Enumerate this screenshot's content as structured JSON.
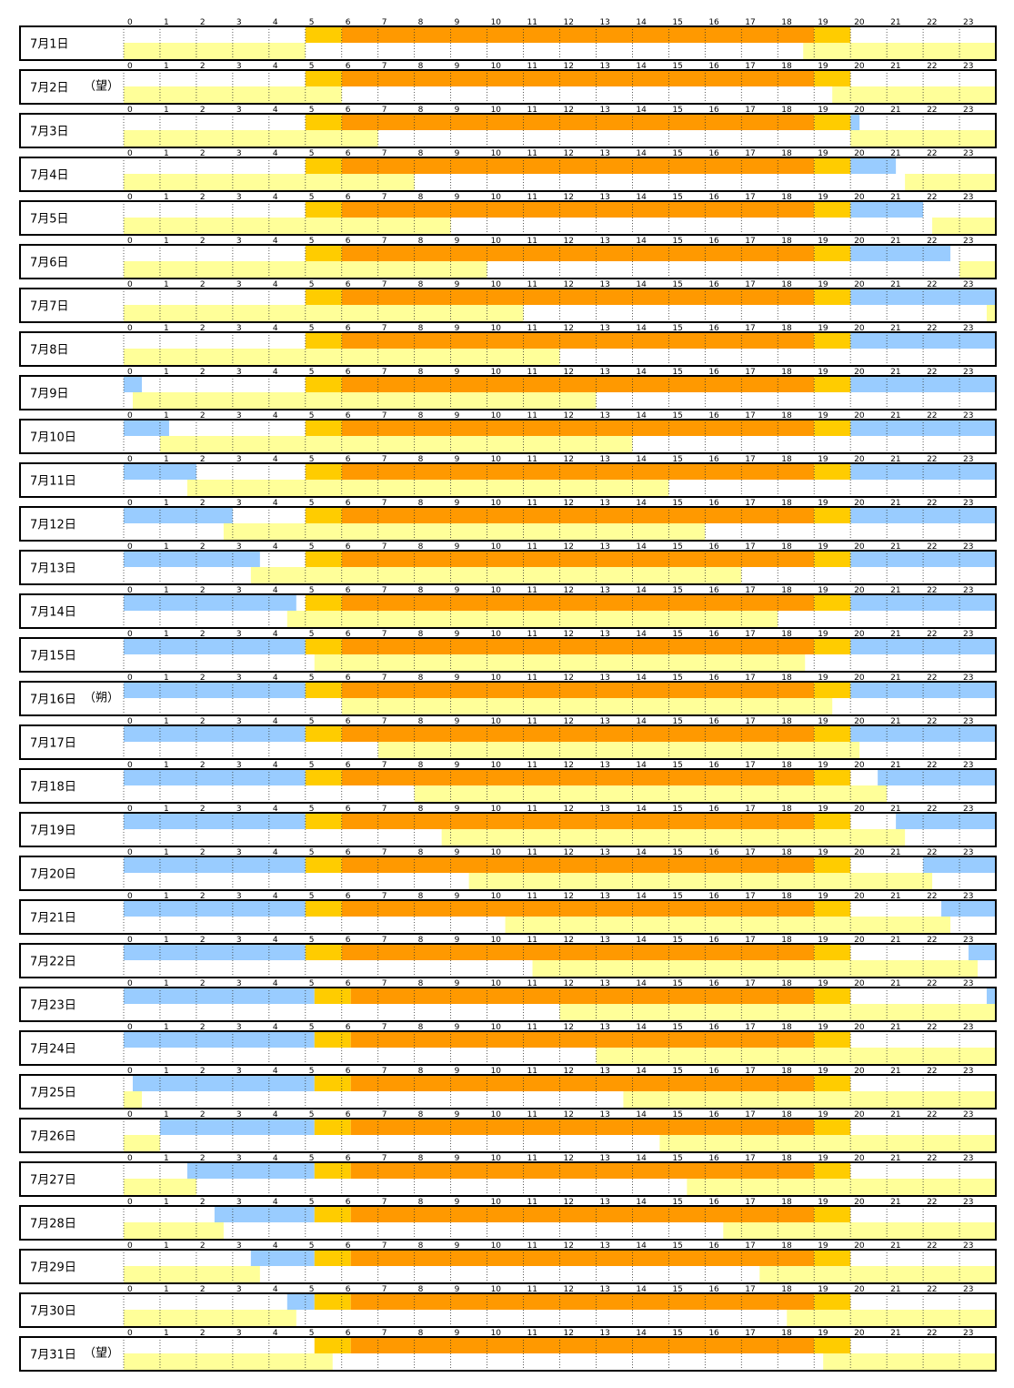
{
  "chart_data": {
    "type": "bar",
    "hours": [
      "0",
      "1",
      "2",
      "3",
      "4",
      "5",
      "6",
      "7",
      "8",
      "9",
      "10",
      "11",
      "12",
      "13",
      "14",
      "15",
      "16",
      "17",
      "18",
      "19",
      "20",
      "21",
      "22",
      "23"
    ],
    "x_range": [
      0,
      24
    ],
    "grid": true,
    "colors": {
      "sun": "#FF9900",
      "twilight": "#FFCC00",
      "moon": "#FFFF99",
      "moon_prev": "#99CCFF"
    },
    "series": [
      {
        "key": "sun"
      },
      {
        "key": "twilight"
      },
      {
        "key": "moon"
      },
      {
        "key": "moon_prev"
      }
    ],
    "days": [
      {
        "label": "7月1日",
        "note": "",
        "twilight_am": [
          5.0,
          6.0
        ],
        "sun": [
          6.0,
          19.0
        ],
        "twilight_pm": [
          19.0,
          20.0
        ],
        "moon_prev": [],
        "moon": [
          [
            0,
            5.0
          ],
          [
            18.7,
            24
          ]
        ]
      },
      {
        "label": "7月2日",
        "note": "（望）",
        "twilight_am": [
          5.0,
          6.0
        ],
        "sun": [
          6.0,
          19.0
        ],
        "twilight_pm": [
          19.0,
          20.0
        ],
        "moon_prev": [],
        "moon": [
          [
            0,
            6.0
          ],
          [
            19.5,
            24
          ]
        ]
      },
      {
        "label": "7月3日",
        "note": "",
        "twilight_am": [
          5.0,
          6.0
        ],
        "sun": [
          6.0,
          19.0
        ],
        "twilight_pm": [
          19.0,
          20.0
        ],
        "moon_prev": [
          [
            20.0,
            20.25
          ]
        ],
        "moon": [
          [
            0,
            7.0
          ],
          [
            20.0,
            24
          ]
        ]
      },
      {
        "label": "7月4日",
        "note": "",
        "twilight_am": [
          5.0,
          6.0
        ],
        "sun": [
          6.0,
          19.0
        ],
        "twilight_pm": [
          19.0,
          20.0
        ],
        "moon_prev": [
          [
            20.0,
            21.25
          ]
        ],
        "moon": [
          [
            0,
            8.0
          ],
          [
            21.5,
            24
          ]
        ]
      },
      {
        "label": "7月5日",
        "note": "",
        "twilight_am": [
          5.0,
          6.0
        ],
        "sun": [
          6.0,
          19.0
        ],
        "twilight_pm": [
          19.0,
          20.0
        ],
        "moon_prev": [
          [
            20.0,
            22.0
          ]
        ],
        "moon": [
          [
            0,
            9.0
          ],
          [
            22.25,
            24
          ]
        ]
      },
      {
        "label": "7月6日",
        "note": "",
        "twilight_am": [
          5.0,
          6.0
        ],
        "sun": [
          6.0,
          19.0
        ],
        "twilight_pm": [
          19.0,
          20.0
        ],
        "moon_prev": [
          [
            20.0,
            22.75
          ]
        ],
        "moon": [
          [
            0,
            10.0
          ],
          [
            23.0,
            24
          ]
        ]
      },
      {
        "label": "7月7日",
        "note": "",
        "twilight_am": [
          5.0,
          6.0
        ],
        "sun": [
          6.0,
          19.0
        ],
        "twilight_pm": [
          19.0,
          20.0
        ],
        "moon_prev": [
          [
            20.0,
            24
          ]
        ],
        "moon": [
          [
            0,
            11.0
          ],
          [
            23.75,
            24
          ]
        ]
      },
      {
        "label": "7月8日",
        "note": "",
        "twilight_am": [
          5.0,
          6.0
        ],
        "sun": [
          6.0,
          19.0
        ],
        "twilight_pm": [
          19.0,
          20.0
        ],
        "moon_prev": [
          [
            20.0,
            24
          ]
        ],
        "moon": [
          [
            0,
            12.0
          ]
        ]
      },
      {
        "label": "7月9日",
        "note": "",
        "twilight_am": [
          5.0,
          6.0
        ],
        "sun": [
          6.0,
          19.0
        ],
        "twilight_pm": [
          19.0,
          20.0
        ],
        "moon_prev": [
          [
            0,
            0.5
          ],
          [
            20.0,
            24
          ]
        ],
        "moon": [
          [
            0.25,
            13.0
          ]
        ]
      },
      {
        "label": "7月10日",
        "note": "",
        "twilight_am": [
          5.0,
          6.0
        ],
        "sun": [
          6.0,
          19.0
        ],
        "twilight_pm": [
          19.0,
          20.0
        ],
        "moon_prev": [
          [
            0,
            1.25
          ],
          [
            20.0,
            24
          ]
        ],
        "moon": [
          [
            1.0,
            14.0
          ]
        ]
      },
      {
        "label": "7月11日",
        "note": "",
        "twilight_am": [
          5.0,
          6.0
        ],
        "sun": [
          6.0,
          19.0
        ],
        "twilight_pm": [
          19.0,
          20.0
        ],
        "moon_prev": [
          [
            0,
            2.0
          ],
          [
            20.0,
            24
          ]
        ],
        "moon": [
          [
            1.75,
            15.0
          ]
        ]
      },
      {
        "label": "7月12日",
        "note": "",
        "twilight_am": [
          5.0,
          6.0
        ],
        "sun": [
          6.0,
          19.0
        ],
        "twilight_pm": [
          19.0,
          20.0
        ],
        "moon_prev": [
          [
            0,
            3.0
          ],
          [
            20.0,
            24
          ]
        ],
        "moon": [
          [
            2.75,
            16.0
          ]
        ]
      },
      {
        "label": "7月13日",
        "note": "",
        "twilight_am": [
          5.0,
          6.0
        ],
        "sun": [
          6.0,
          19.0
        ],
        "twilight_pm": [
          19.0,
          20.0
        ],
        "moon_prev": [
          [
            0,
            3.75
          ],
          [
            20.0,
            24
          ]
        ],
        "moon": [
          [
            3.5,
            17.0
          ]
        ]
      },
      {
        "label": "7月14日",
        "note": "",
        "twilight_am": [
          5.0,
          6.0
        ],
        "sun": [
          6.0,
          19.0
        ],
        "twilight_pm": [
          19.0,
          20.0
        ],
        "moon_prev": [
          [
            0,
            4.75
          ],
          [
            20.0,
            24
          ]
        ],
        "moon": [
          [
            4.5,
            18.0
          ]
        ]
      },
      {
        "label": "7月15日",
        "note": "",
        "twilight_am": [
          5.0,
          6.0
        ],
        "sun": [
          6.0,
          19.0
        ],
        "twilight_pm": [
          19.0,
          20.0
        ],
        "moon_prev": [
          [
            0,
            5.0
          ],
          [
            20.0,
            24
          ]
        ],
        "moon": [
          [
            5.25,
            18.75
          ]
        ]
      },
      {
        "label": "7月16日",
        "note": "（朔）",
        "twilight_am": [
          5.0,
          6.0
        ],
        "sun": [
          6.0,
          19.0
        ],
        "twilight_pm": [
          19.0,
          20.0
        ],
        "moon_prev": [
          [
            0,
            5.0
          ],
          [
            20.0,
            24
          ]
        ],
        "moon": [
          [
            6.0,
            19.5
          ]
        ]
      },
      {
        "label": "7月17日",
        "note": "",
        "twilight_am": [
          5.0,
          6.0
        ],
        "sun": [
          6.0,
          19.0
        ],
        "twilight_pm": [
          19.0,
          20.0
        ],
        "moon_prev": [
          [
            0,
            5.0
          ],
          [
            20.0,
            24
          ]
        ],
        "moon": [
          [
            7.0,
            20.25
          ]
        ]
      },
      {
        "label": "7月18日",
        "note": "",
        "twilight_am": [
          5.0,
          6.0
        ],
        "sun": [
          6.0,
          19.0
        ],
        "twilight_pm": [
          19.0,
          20.0
        ],
        "moon_prev": [
          [
            0,
            5.0
          ],
          [
            20.75,
            24
          ]
        ],
        "moon": [
          [
            8.0,
            21.0
          ]
        ]
      },
      {
        "label": "7月19日",
        "note": "",
        "twilight_am": [
          5.0,
          6.0
        ],
        "sun": [
          6.0,
          19.0
        ],
        "twilight_pm": [
          19.0,
          20.0
        ],
        "moon_prev": [
          [
            0,
            5.0
          ],
          [
            21.25,
            24
          ]
        ],
        "moon": [
          [
            8.75,
            21.5
          ]
        ]
      },
      {
        "label": "7月20日",
        "note": "",
        "twilight_am": [
          5.0,
          6.0
        ],
        "sun": [
          6.0,
          19.0
        ],
        "twilight_pm": [
          19.0,
          20.0
        ],
        "moon_prev": [
          [
            0,
            5.0
          ],
          [
            22.0,
            24
          ]
        ],
        "moon": [
          [
            9.5,
            22.25
          ]
        ]
      },
      {
        "label": "7月21日",
        "note": "",
        "twilight_am": [
          5.0,
          6.0
        ],
        "sun": [
          6.0,
          19.0
        ],
        "twilight_pm": [
          19.0,
          20.0
        ],
        "moon_prev": [
          [
            0,
            5.0
          ],
          [
            22.5,
            24
          ]
        ],
        "moon": [
          [
            10.5,
            22.75
          ]
        ]
      },
      {
        "label": "7月22日",
        "note": "",
        "twilight_am": [
          5.0,
          6.0
        ],
        "sun": [
          6.0,
          19.0
        ],
        "twilight_pm": [
          19.0,
          20.0
        ],
        "moon_prev": [
          [
            0,
            5.0
          ],
          [
            23.25,
            24
          ]
        ],
        "moon": [
          [
            11.25,
            23.5
          ]
        ]
      },
      {
        "label": "7月23日",
        "note": "",
        "twilight_am": [
          5.25,
          6.25
        ],
        "sun": [
          6.25,
          19.0
        ],
        "twilight_pm": [
          19.0,
          20.0
        ],
        "moon_prev": [
          [
            0,
            5.25
          ],
          [
            23.75,
            24
          ]
        ],
        "moon": [
          [
            12.0,
            24
          ]
        ]
      },
      {
        "label": "7月24日",
        "note": "",
        "twilight_am": [
          5.25,
          6.25
        ],
        "sun": [
          6.25,
          19.0
        ],
        "twilight_pm": [
          19.0,
          20.0
        ],
        "moon_prev": [
          [
            0,
            5.25
          ]
        ],
        "moon": [
          [
            13.0,
            24
          ]
        ]
      },
      {
        "label": "7月25日",
        "note": "",
        "twilight_am": [
          5.25,
          6.25
        ],
        "sun": [
          6.25,
          19.0
        ],
        "twilight_pm": [
          19.0,
          20.0
        ],
        "moon_prev": [
          [
            0.25,
            5.25
          ]
        ],
        "moon": [
          [
            0,
            0.5
          ],
          [
            13.75,
            24
          ]
        ]
      },
      {
        "label": "7月26日",
        "note": "",
        "twilight_am": [
          5.25,
          6.25
        ],
        "sun": [
          6.25,
          19.0
        ],
        "twilight_pm": [
          19.0,
          20.0
        ],
        "moon_prev": [
          [
            1.0,
            5.25
          ]
        ],
        "moon": [
          [
            0,
            1.0
          ],
          [
            14.75,
            24
          ]
        ]
      },
      {
        "label": "7月27日",
        "note": "",
        "twilight_am": [
          5.25,
          6.25
        ],
        "sun": [
          6.25,
          19.0
        ],
        "twilight_pm": [
          19.0,
          20.0
        ],
        "moon_prev": [
          [
            1.75,
            5.25
          ]
        ],
        "moon": [
          [
            0,
            2.0
          ],
          [
            15.5,
            24
          ]
        ]
      },
      {
        "label": "7月28日",
        "note": "",
        "twilight_am": [
          5.25,
          6.25
        ],
        "sun": [
          6.25,
          19.0
        ],
        "twilight_pm": [
          19.0,
          20.0
        ],
        "moon_prev": [
          [
            2.5,
            5.25
          ]
        ],
        "moon": [
          [
            0,
            2.75
          ],
          [
            16.5,
            24
          ]
        ]
      },
      {
        "label": "7月29日",
        "note": "",
        "twilight_am": [
          5.25,
          6.25
        ],
        "sun": [
          6.25,
          19.0
        ],
        "twilight_pm": [
          19.0,
          20.0
        ],
        "moon_prev": [
          [
            3.5,
            5.25
          ]
        ],
        "moon": [
          [
            0,
            3.75
          ],
          [
            17.5,
            24
          ]
        ]
      },
      {
        "label": "7月30日",
        "note": "",
        "twilight_am": [
          5.25,
          6.25
        ],
        "sun": [
          6.25,
          19.0
        ],
        "twilight_pm": [
          19.0,
          20.0
        ],
        "moon_prev": [
          [
            4.5,
            5.25
          ]
        ],
        "moon": [
          [
            0,
            4.75
          ],
          [
            18.25,
            24
          ]
        ]
      },
      {
        "label": "7月31日",
        "note": "（望）",
        "twilight_am": [
          5.25,
          6.25
        ],
        "sun": [
          6.25,
          19.0
        ],
        "twilight_pm": [
          19.0,
          20.0
        ],
        "moon_prev": [],
        "moon": [
          [
            0,
            5.75
          ],
          [
            19.25,
            24
          ]
        ]
      }
    ]
  }
}
